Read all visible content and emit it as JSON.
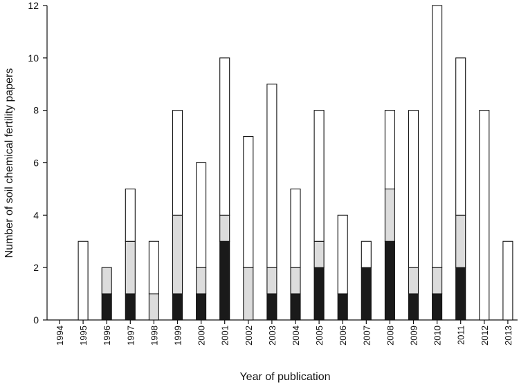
{
  "chart_data": {
    "type": "bar",
    "stacked": true,
    "title": "",
    "xlabel": "Year of publication",
    "ylabel": "Number of soil chemical fertility papers",
    "ylim": [
      0,
      12
    ],
    "yticks": [
      0,
      2,
      4,
      6,
      8,
      10,
      12
    ],
    "categories": [
      "1994",
      "1995",
      "1996",
      "1997",
      "1998",
      "1999",
      "2000",
      "2001",
      "2002",
      "2003",
      "2004",
      "2005",
      "2006",
      "2007",
      "2008",
      "2009",
      "2010",
      "2011",
      "2012",
      "2013"
    ],
    "series": [
      {
        "color": "#1a1a1a",
        "values": [
          0,
          0,
          1,
          1,
          0,
          1,
          1,
          3,
          0,
          1,
          1,
          2,
          1,
          2,
          3,
          1,
          1,
          2,
          0,
          0
        ]
      },
      {
        "color": "#dcdcdc",
        "values": [
          0,
          0,
          1,
          2,
          1,
          3,
          1,
          1,
          2,
          1,
          1,
          1,
          0,
          0,
          2,
          1,
          1,
          2,
          0,
          0
        ]
      },
      {
        "color": "#ffffff",
        "values": [
          0,
          3,
          0,
          2,
          2,
          4,
          4,
          6,
          5,
          7,
          3,
          5,
          3,
          1,
          3,
          6,
          10,
          6,
          8,
          3
        ]
      }
    ],
    "grid": false,
    "legend": "none"
  }
}
